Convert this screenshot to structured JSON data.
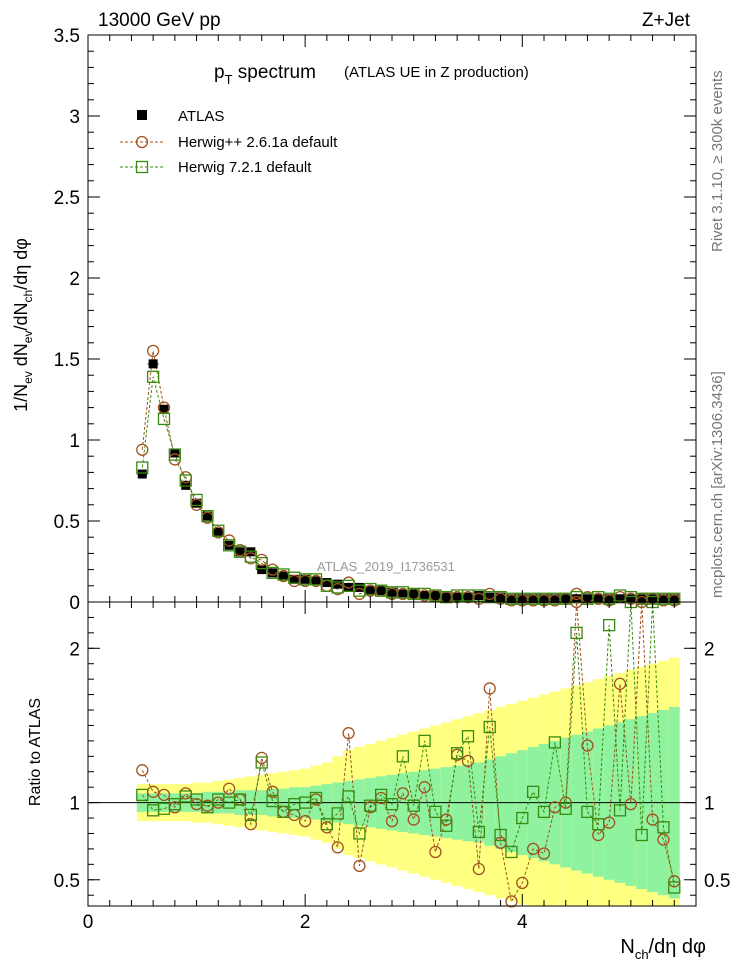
{
  "header": {
    "left_label": "13000 GeV pp",
    "right_label": "Z+Jet"
  },
  "side_text": {
    "rivet": "Rivet 3.1.10, ≥ 300k events",
    "mcplots": "mcplots.cern.ch [arXiv:1306.3436]"
  },
  "chart_data": [
    {
      "type": "scatter",
      "panel": "main",
      "title_main": "p",
      "title_sub": "T",
      "title_rest": " spectrum",
      "title_note": "(ATLAS UE in Z production)",
      "watermark": "ATLAS_2019_I1736531",
      "ylabel": "1/N_ev dN_ev/dN_ch/dη dφ",
      "xlabel": "N_ch/dη dφ",
      "xlim": [
        0,
        5.6
      ],
      "ylim": [
        0,
        3.5
      ],
      "yticks": [
        "0",
        "0.5",
        "1",
        "1.5",
        "2",
        "2.5",
        "3",
        "3.5"
      ],
      "xticks": [
        "0",
        "2",
        "4"
      ],
      "legend": [
        "ATLAS",
        "Herwig++ 2.6.1a default",
        "Herwig 7.2.1 default"
      ],
      "x": [
        0.5,
        0.6,
        0.7,
        0.8,
        0.9,
        1.0,
        1.1,
        1.2,
        1.3,
        1.4,
        1.5,
        1.6,
        1.7,
        1.8,
        1.9,
        2.0,
        2.1,
        2.2,
        2.3,
        2.4,
        2.5,
        2.6,
        2.7,
        2.8,
        2.9,
        3.0,
        3.1,
        3.2,
        3.3,
        3.4,
        3.5,
        3.6,
        3.7,
        3.8,
        3.9,
        4.0,
        4.1,
        4.2,
        4.3,
        4.4,
        4.5,
        4.6,
        4.7,
        4.8,
        4.9,
        5.0,
        5.1,
        5.2,
        5.3,
        5.4
      ],
      "series": [
        {
          "name": "ATLAS",
          "values": [
            0.79,
            1.47,
            1.19,
            0.92,
            0.72,
            0.61,
            0.53,
            0.43,
            0.35,
            0.31,
            0.31,
            0.2,
            0.18,
            0.16,
            0.14,
            0.14,
            0.13,
            0.12,
            0.11,
            0.09,
            0.09,
            0.07,
            0.07,
            0.06,
            0.05,
            0.05,
            0.04,
            0.04,
            0.03,
            0.03,
            0.03,
            0.04,
            0.03,
            0.03,
            0.02,
            0.02,
            0.02,
            0.02,
            0.02,
            0.02,
            0.02,
            0.02,
            0.02,
            0.02,
            0.02,
            0.02,
            0.02,
            0.02,
            0.02,
            0.02
          ]
        },
        {
          "name": "Herwig++ 2.6.1a default",
          "values": [
            0.94,
            1.55,
            1.2,
            0.88,
            0.77,
            0.6,
            0.52,
            0.43,
            0.38,
            0.32,
            0.27,
            0.26,
            0.2,
            0.16,
            0.13,
            0.13,
            0.13,
            0.1,
            0.08,
            0.12,
            0.05,
            0.07,
            0.07,
            0.05,
            0.05,
            0.05,
            0.04,
            0.04,
            0.03,
            0.03,
            0.03,
            0.02,
            0.05,
            0.02,
            0.01,
            0.01,
            0.01,
            0.01,
            0.01,
            0.02,
            0.05,
            0.03,
            0.02,
            0.01,
            0.03,
            0.02,
            0.02,
            0.02,
            0.01,
            0.01
          ]
        },
        {
          "name": "Herwig 7.2.1 default",
          "values": [
            0.83,
            1.39,
            1.13,
            0.91,
            0.75,
            0.63,
            0.53,
            0.44,
            0.35,
            0.31,
            0.28,
            0.24,
            0.18,
            0.17,
            0.15,
            0.14,
            0.14,
            0.1,
            0.09,
            0.1,
            0.07,
            0.08,
            0.07,
            0.06,
            0.06,
            0.05,
            0.05,
            0.04,
            0.03,
            0.04,
            0.04,
            0.04,
            0.03,
            0.03,
            0.02,
            0.02,
            0.02,
            0.02,
            0.02,
            0.02,
            0.03,
            0.02,
            0.03,
            0.02,
            0.04,
            0.03,
            0.02,
            0.02,
            0.02,
            0.02
          ]
        }
      ]
    },
    {
      "type": "scatter",
      "panel": "ratio",
      "ylabel": "Ratio to ATLAS",
      "xlim": [
        0,
        5.6
      ],
      "ylim": [
        0.33,
        2.3
      ],
      "yticks": [
        "0.5",
        "1",
        "2"
      ],
      "x": [
        0.5,
        0.6,
        0.7,
        0.8,
        0.9,
        1.0,
        1.1,
        1.2,
        1.3,
        1.4,
        1.5,
        1.6,
        1.7,
        1.8,
        1.9,
        2.0,
        2.1,
        2.2,
        2.3,
        2.4,
        2.5,
        2.6,
        2.7,
        2.8,
        2.9,
        3.0,
        3.1,
        3.2,
        3.3,
        3.4,
        3.5,
        3.6,
        3.7,
        3.8,
        3.9,
        4.0,
        4.1,
        4.2,
        4.3,
        4.4,
        4.5,
        4.6,
        4.7,
        4.8,
        4.9,
        5.0,
        5.1,
        5.2,
        5.3,
        5.4
      ],
      "band_green": [
        0.06,
        0.06,
        0.06,
        0.06,
        0.06,
        0.06,
        0.07,
        0.07,
        0.07,
        0.08,
        0.08,
        0.08,
        0.09,
        0.09,
        0.1,
        0.1,
        0.11,
        0.12,
        0.13,
        0.14,
        0.15,
        0.16,
        0.17,
        0.18,
        0.19,
        0.2,
        0.21,
        0.22,
        0.23,
        0.24,
        0.25,
        0.26,
        0.28,
        0.3,
        0.32,
        0.34,
        0.36,
        0.38,
        0.4,
        0.42,
        0.44,
        0.46,
        0.48,
        0.5,
        0.52,
        0.54,
        0.56,
        0.58,
        0.6,
        0.62
      ],
      "band_yellow": [
        0.12,
        0.12,
        0.12,
        0.12,
        0.12,
        0.13,
        0.13,
        0.14,
        0.15,
        0.16,
        0.17,
        0.18,
        0.19,
        0.2,
        0.21,
        0.22,
        0.24,
        0.26,
        0.3,
        0.34,
        0.36,
        0.38,
        0.4,
        0.42,
        0.44,
        0.46,
        0.48,
        0.5,
        0.52,
        0.54,
        0.56,
        0.58,
        0.6,
        0.62,
        0.64,
        0.66,
        0.68,
        0.7,
        0.72,
        0.74,
        0.76,
        0.78,
        0.8,
        0.82,
        0.84,
        0.86,
        0.88,
        0.9,
        0.92,
        0.94
      ],
      "series": [
        {
          "name": "Herwig++ 2.6.1a default",
          "values": [
            1.21,
            1.07,
            1.05,
            0.97,
            1.06,
            0.99,
            0.98,
            1.0,
            1.09,
            1.02,
            0.86,
            1.29,
            1.07,
            0.94,
            0.92,
            0.88,
            1.02,
            0.84,
            0.71,
            1.45,
            0.59,
            0.97,
            1.03,
            0.88,
            1.06,
            0.89,
            1.1,
            0.68,
            0.89,
            1.31,
            1.27,
            0.57,
            1.74,
            0.74,
            0.36,
            0.48,
            0.7,
            0.67,
            0.97,
            1.0,
            2.3,
            1.37,
            0.79,
            0.87,
            1.77,
            0.99,
            2.3,
            0.89,
            0.76,
            0.49
          ]
        },
        {
          "name": "Herwig 7.2.1 default",
          "values": [
            1.05,
            0.95,
            0.96,
            0.99,
            1.04,
            1.02,
            0.97,
            1.02,
            1.0,
            1.02,
            0.92,
            1.26,
            1.01,
            0.94,
            0.99,
            1.0,
            1.03,
            0.86,
            0.93,
            1.04,
            0.8,
            0.98,
            1.05,
            0.99,
            1.3,
            0.98,
            1.4,
            0.94,
            0.85,
            1.32,
            1.43,
            0.81,
            1.49,
            0.79,
            0.68,
            0.9,
            1.07,
            0.94,
            1.39,
            0.96,
            2.1,
            0.94,
            0.86,
            2.15,
            0.95,
            2.3,
            0.79,
            2.3,
            0.84,
            0.45
          ]
        }
      ]
    }
  ]
}
